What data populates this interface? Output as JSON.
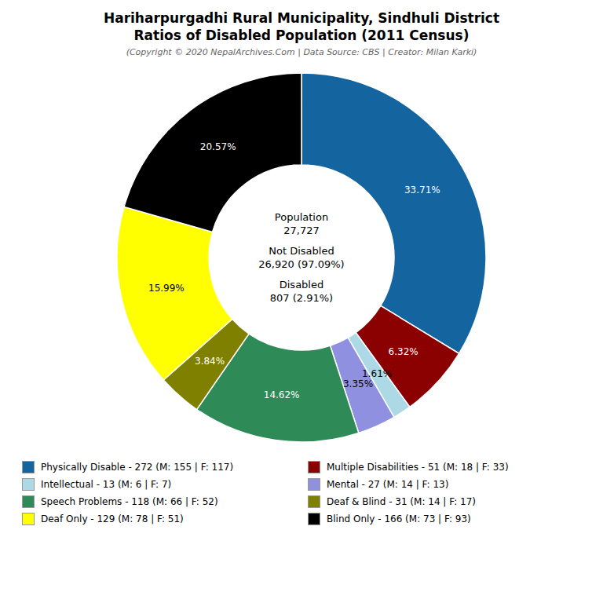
{
  "chart_data": {
    "type": "pie",
    "title": [
      "Hariharpurgadhi Rural Municipality, Sindhuli District",
      "Ratios of Disabled Population (2011 Census)"
    ],
    "subtitle": "(Copyright © 2020 NepalArchives.Com | Data Source: CBS | Creator: Milan Karki)",
    "annotations": [
      [
        "Population",
        "27,727"
      ],
      [
        "Not Disabled",
        "26,920 (97.09%)"
      ],
      [
        "Disabled",
        "807 (2.91%)"
      ]
    ],
    "categories": [
      "Physically Disable - 272 (M: 155 | F: 117)",
      "Multiple Disabilities - 51 (M: 18 | F: 33)",
      "Intellectual - 13 (M: 6 | F: 7)",
      "Mental - 27 (M: 14 | F: 13)",
      "Speech Problems - 118 (M: 66 | F: 52)",
      "Deaf & Blind - 31 (M: 14 | F: 17)",
      "Deaf Only - 129 (M: 78 | F: 51)",
      "Blind Only - 166 (M: 73 | F: 93)"
    ],
    "values": [
      33.71,
      6.32,
      1.61,
      3.35,
      14.62,
      3.84,
      15.99,
      20.57
    ],
    "value_labels": [
      "33.71%",
      "6.32%",
      "1.61%",
      "3.35%",
      "14.62%",
      "3.84%",
      "15.99%",
      "20.57%"
    ],
    "colors": [
      "#1464a0",
      "#8b0000",
      "#add8e6",
      "#9090e0",
      "#2e8b57",
      "#808000",
      "#ffff00",
      "#000000"
    ],
    "data_labels": true,
    "legend": "bottom"
  }
}
